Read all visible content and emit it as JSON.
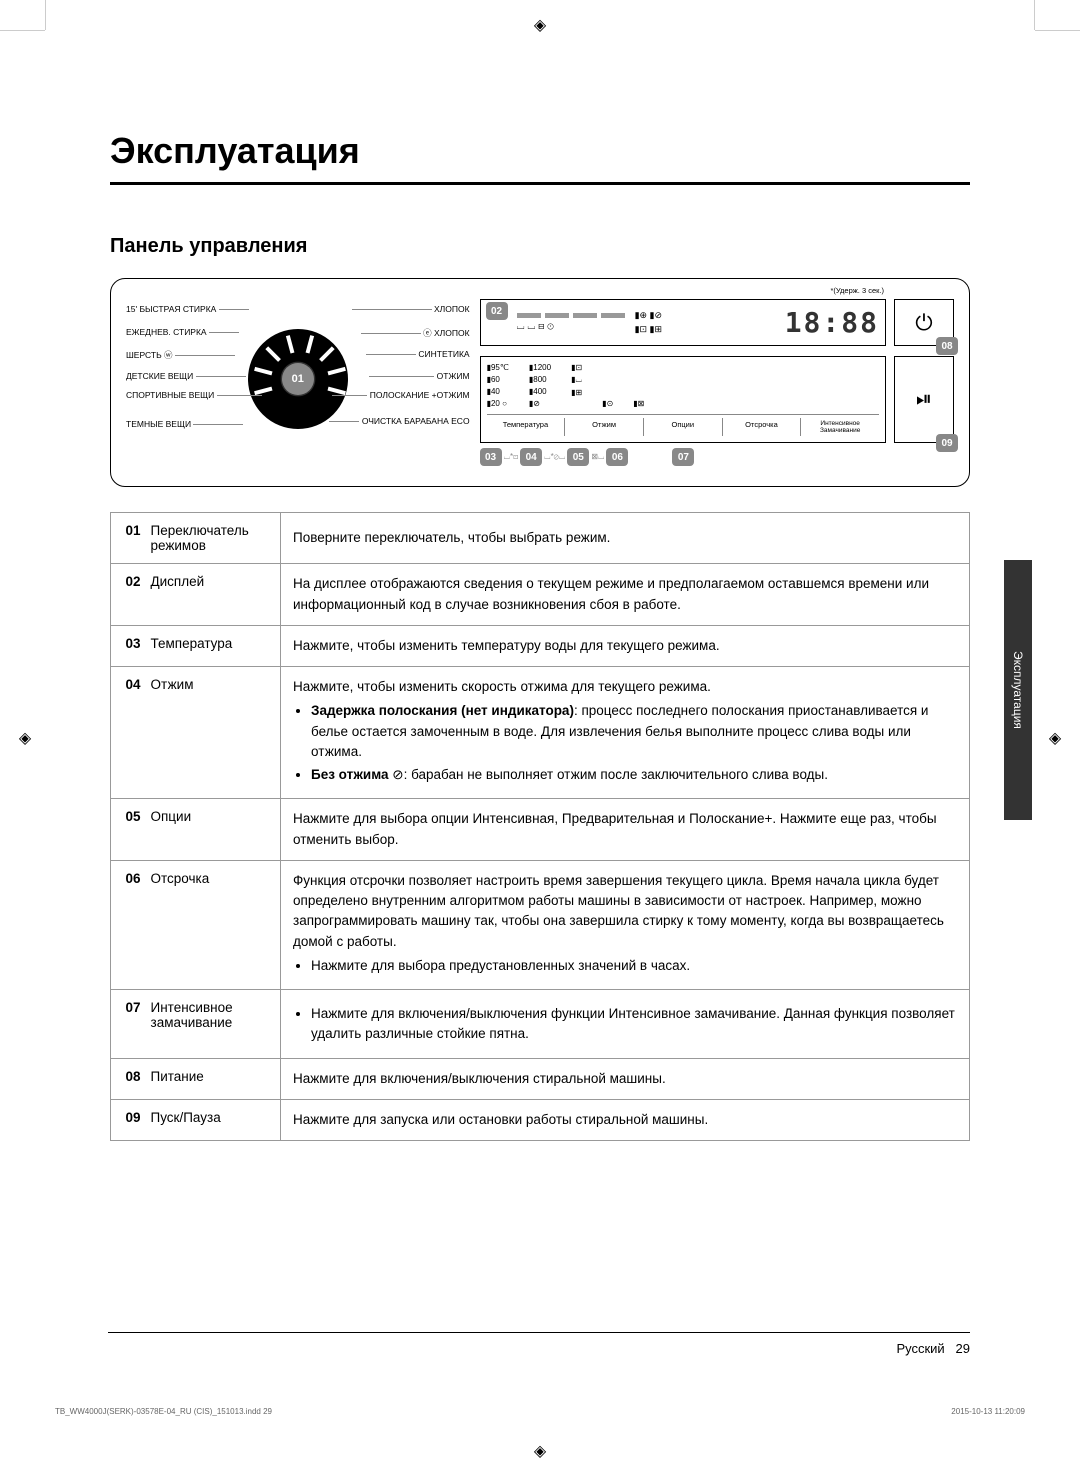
{
  "page": {
    "main_title": "Эксплуатация",
    "subtitle": "Панель управления",
    "side_tab": "Эксплуатация",
    "footer_lang": "Русский",
    "footer_page": "29",
    "print_file": "TB_WW4000J(SERK)-03578E-04_RU (CIS)_151013.indd   29",
    "print_date": "2015-10-13   11:20:09"
  },
  "diagram": {
    "dial_num": "01",
    "dial_labels_left": [
      "15' БЫСТРАЯ СТИРКА",
      "ЕЖЕДНЕВ. СТИРКА",
      "ШЕРСТЬ",
      "ДЕТСКИЕ ВЕЩИ",
      "СПОРТИВНЫЕ ВЕЩИ",
      "ТЕМНЫЕ ВЕЩИ"
    ],
    "dial_labels_right": [
      "ХЛОПОК",
      "ХЛОПОК",
      "СИНТЕТИКА",
      "ОТЖИМ",
      "ПОЛОСКАНИЕ +ОТЖИМ",
      "ОЧИСТКА БАРАБАНА ECO"
    ],
    "callout_02": "02",
    "time": "18:88",
    "hold_note": "*(Удерж. 3 сек.)",
    "temps": [
      "▮95℃",
      "▮60",
      "▮40",
      "▮20 ○"
    ],
    "spins": [
      "▮1200",
      "▮800",
      "▮400",
      "▮⊘"
    ],
    "buttons": [
      "Температура",
      "Отжим",
      "Опции",
      "Отсрочка",
      "Интенсивное Замачивание"
    ],
    "callouts_bottom": [
      "03",
      "04",
      "05",
      "06",
      "07"
    ],
    "callout_08": "08",
    "callout_09": "09"
  },
  "table": {
    "rows": [
      {
        "num": "01",
        "name": "Переключатель режимов",
        "desc": "Поверните переключатель, чтобы выбрать режим."
      },
      {
        "num": "02",
        "name": "Дисплей",
        "desc": "На дисплее отображаются сведения о текущем режиме и предполагаемом оставшемся времени или информационный код в случае возникновения сбоя в работе."
      },
      {
        "num": "03",
        "name": "Температура",
        "desc": "Нажмите, чтобы изменить температуру воды для текущего режима."
      },
      {
        "num": "04",
        "name": "Отжим",
        "desc_intro": "Нажмите, чтобы изменить скорость отжима для текущего режима.",
        "bullets": [
          "<b>Задержка полоскания (нет индикатора)</b>: процесс последнего полоскания приостанавливается и белье остается замоченным в воде. Для извлечения белья выполните процесс слива воды или отжима.",
          "<b>Без отжима</b> ⊘: барабан не выполняет отжим после заключительного слива воды."
        ]
      },
      {
        "num": "05",
        "name": "Опции",
        "desc": "Нажмите для выбора опции Интенсивная, Предварительная и Полоскание+. Нажмите еще раз, чтобы отменить выбор."
      },
      {
        "num": "06",
        "name": "Отсрочка",
        "desc_intro": "Функция отсрочки позволяет настроить время завершения текущего цикла. Время начала цикла будет определено внутренним алгоритмом работы машины в зависимости от настроек. Например, можно запрограммировать машину так, чтобы она завершила стирку к тому моменту, когда вы возвращаетесь домой с работы.",
        "bullets": [
          "Нажмите для выбора предустановленных значений в часах."
        ]
      },
      {
        "num": "07",
        "name": "Интенсивное замачивание",
        "bullets": [
          "Нажмите для включения/выключения функции Интенсивное замачивание. Данная функция позволяет удалить различные стойкие пятна."
        ]
      },
      {
        "num": "08",
        "name": "Питание",
        "desc": "Нажмите для включения/выключения стиральной машины."
      },
      {
        "num": "09",
        "name": "Пуск/Пауза",
        "desc": "Нажмите для запуска или остановки работы стиральной машины."
      }
    ]
  },
  "styling": {
    "colors": {
      "text": "#000000",
      "border": "#999999",
      "callout_bg": "#888888",
      "callout_text": "#ffffff",
      "sidetab_bg": "#333333",
      "dial_bg": "#000000"
    },
    "fonts": {
      "title_size": 36,
      "subtitle_size": 20,
      "body_size": 13.5,
      "diagram_label_size": 8.5
    }
  }
}
